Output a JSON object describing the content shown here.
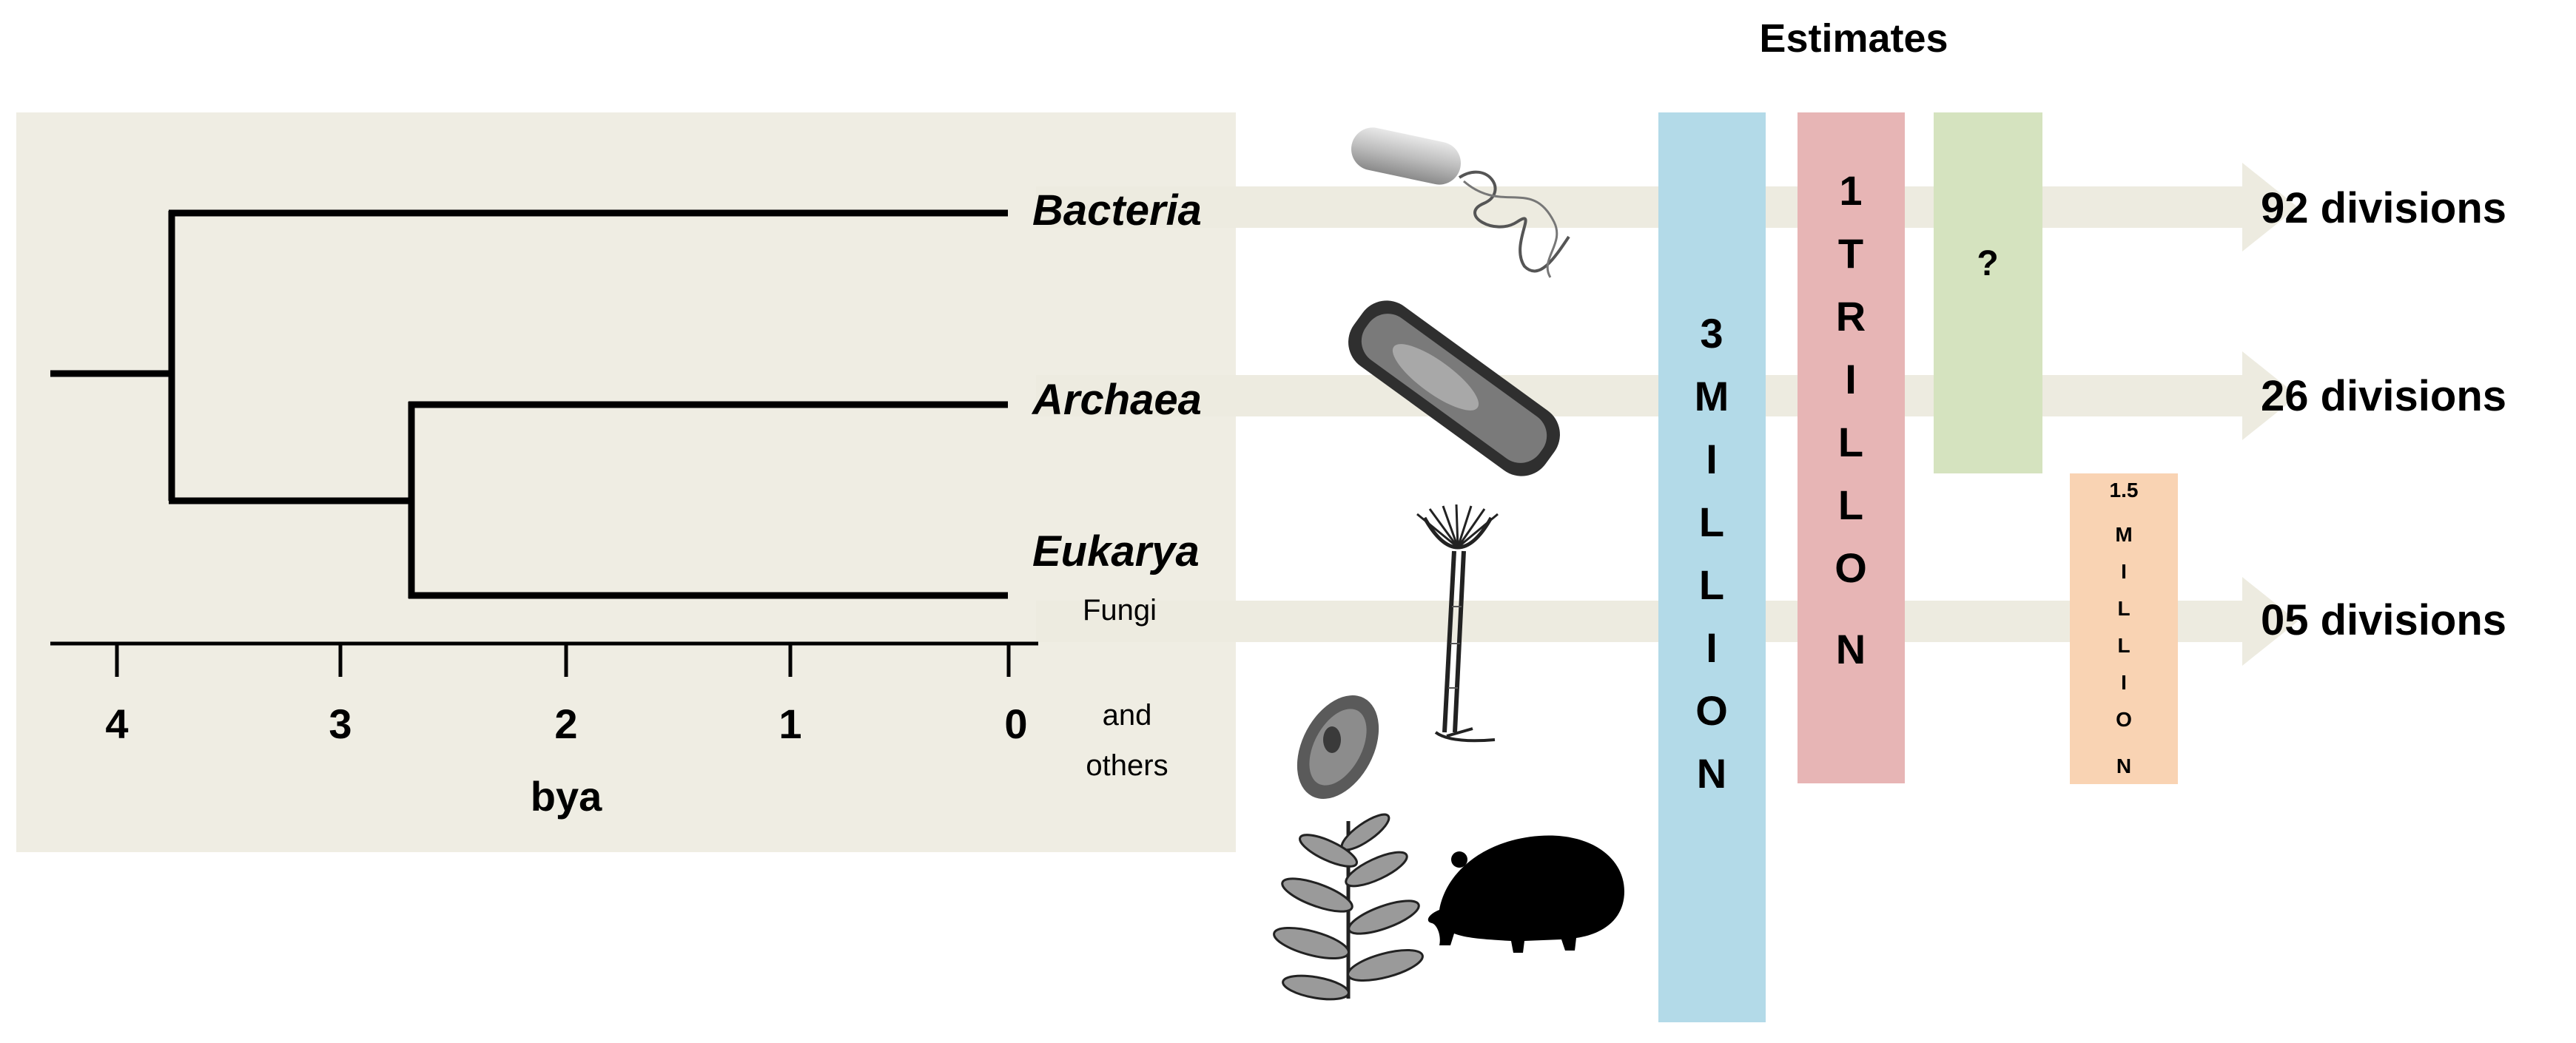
{
  "title": "Estimates",
  "tree": {
    "leaves": [
      {
        "id": "bacteria",
        "label": "Bacteria"
      },
      {
        "id": "archaea",
        "label": "Archaea"
      },
      {
        "id": "eukarya",
        "label": "Eukarya",
        "sub_label": "Fungi"
      }
    ],
    "others_line1": "and",
    "others_line2": "others",
    "axis": {
      "label": "bya",
      "ticks": [
        "4",
        "3",
        "2",
        "1",
        "0"
      ]
    }
  },
  "estimate_bars": [
    {
      "id": "three-million",
      "letters": [
        "3",
        "M",
        "I",
        "L",
        "L",
        "I",
        "O",
        "N"
      ],
      "color": "#b3dae8"
    },
    {
      "id": "one-trillion",
      "letters": [
        "1",
        "T",
        "R",
        "I",
        "L",
        "L",
        "O",
        "N"
      ],
      "color": "#e7b5b5"
    },
    {
      "id": "unknown",
      "letters": [
        "?"
      ],
      "color": "#d5e3bf"
    },
    {
      "id": "one-point-five-million",
      "letters": [
        "1.5",
        "M",
        "I",
        "L",
        "L",
        "I",
        "O",
        "N"
      ],
      "color": "#f9d3b3"
    }
  ],
  "divisions": [
    {
      "id": "bacteria",
      "label": "92 divisions"
    },
    {
      "id": "archaea",
      "label": "26 divisions"
    },
    {
      "id": "fungi",
      "label": "05 divisions"
    }
  ],
  "colors": {
    "panel": "#efede3",
    "arrow": "#edebe0",
    "line": "#000000"
  }
}
